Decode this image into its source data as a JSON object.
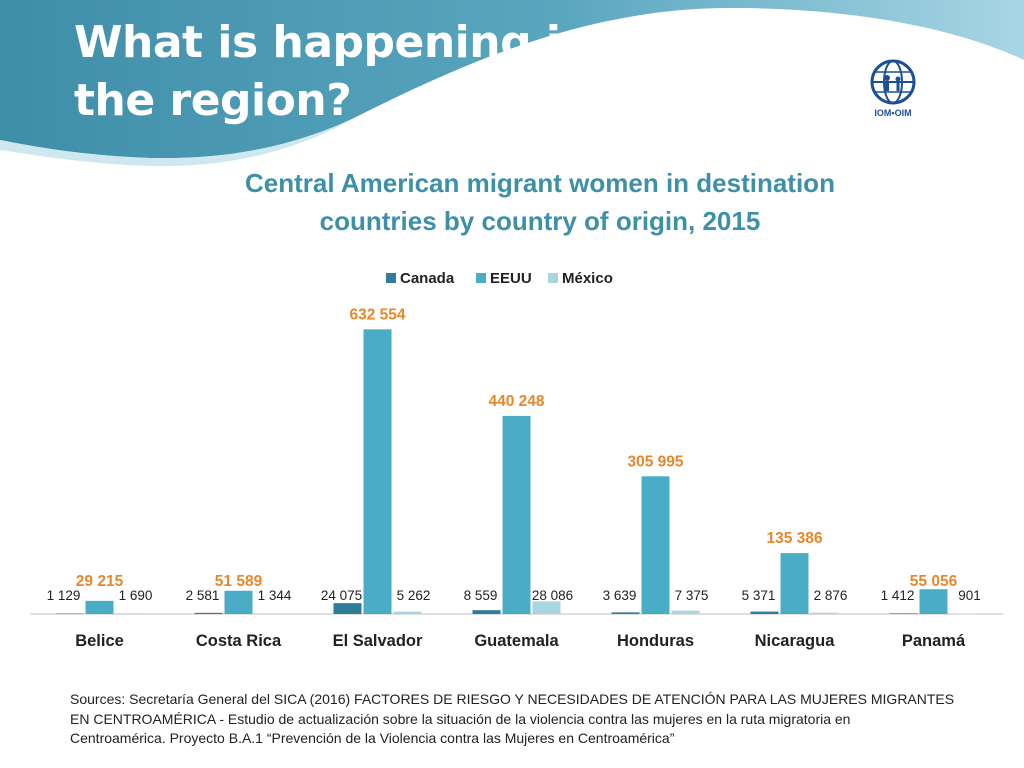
{
  "slide": {
    "title_line1": "What is happening in",
    "title_line2": "the region?",
    "logo_text": "IOM•OIM",
    "sources_line1": "Sources: Secretaría General del SICA (2016) FACTORES DE RIESGO Y NECESIDADES DE ATENCIÓN PARA LAS MUJERES MIGRANTES",
    "sources_line2": "EN CENTROAMÉRICA - Estudio de actualización sobre la situación de la violencia contra las mujeres en la ruta migratoria en",
    "sources_line3": "Centroamérica. Proyecto B.A.1 “Prevención de la Violencia contra las Mujeres en Centroamérica”"
  },
  "colors": {
    "header_dark": "#3f8ea8",
    "header_light": "#a8d6e4",
    "canada": "#2f7d98",
    "eeuu": "#4bacc6",
    "mexico": "#a9d4e2",
    "highlight_label": "#e8862a",
    "axis": "#bfbfbf"
  },
  "chart_data": {
    "type": "bar",
    "title_line1": "Central American migrant women in destination",
    "title_line2": "countries by country of origin, 2015",
    "categories": [
      "Belice",
      "Costa Rica",
      "El Salvador",
      "Guatemala",
      "Honduras",
      "Nicaragua",
      "Panamá"
    ],
    "series": [
      {
        "name": "Canada",
        "values": [
          1129,
          2581,
          24075,
          8559,
          3639,
          5371,
          1412
        ],
        "labels": [
          "1 129",
          "2 581",
          "24 075",
          "8 559",
          "3 639",
          "5 371",
          "1 412"
        ]
      },
      {
        "name": "EEUU",
        "values": [
          29215,
          51589,
          632554,
          440248,
          305995,
          135386,
          55056
        ],
        "labels": [
          "29 215",
          "51 589",
          "632 554",
          "440 248",
          "305 995",
          "135 386",
          "55 056"
        ]
      },
      {
        "name": "México",
        "values": [
          1690,
          1344,
          5262,
          28086,
          7375,
          2876,
          901
        ],
        "labels": [
          "1 690",
          "1 344",
          "5 262",
          "28 086",
          "7 375",
          "2 876",
          "901"
        ]
      }
    ],
    "ylim": [
      0,
      640000
    ],
    "legend_position": "top",
    "grid": false
  }
}
